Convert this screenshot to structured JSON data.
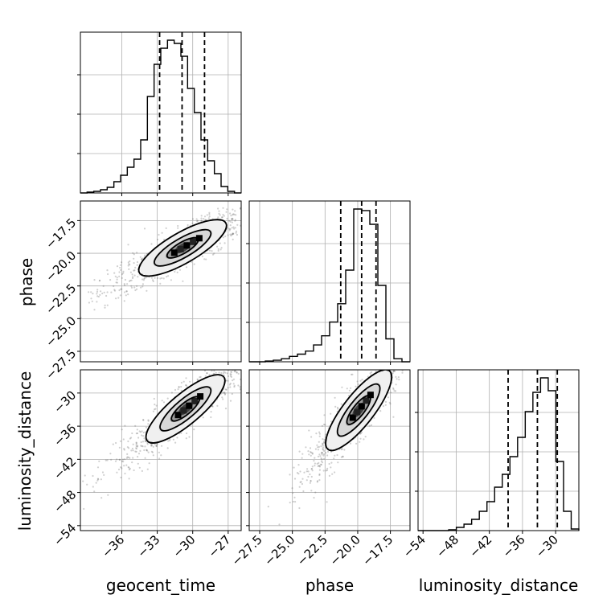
{
  "chart_data": {
    "type": "corner",
    "parameters": [
      "geocent_time",
      "phase",
      "luminosity_distance"
    ],
    "axis_labels": {
      "x": [
        "geocent_time",
        "phase",
        "luminosity_distance"
      ],
      "y": [
        "phase",
        "luminosity_distance"
      ]
    },
    "ranges": {
      "geocent_time": [
        -39.5,
        -25.9
      ],
      "phase": [
        -28.3,
        -16.0
      ],
      "luminosity_distance": [
        -54.9,
        -25.8
      ]
    },
    "ticks": {
      "geocent_time": [
        -36,
        -33,
        -30,
        -27
      ],
      "phase": [
        -27.5,
        -25.0,
        -22.5,
        -20.0,
        -17.5
      ],
      "luminosity_distance": [
        -54,
        -48,
        -42,
        -36,
        -30
      ]
    },
    "tick_labels": {
      "geocent_time": [
        "−36",
        "−33",
        "−30",
        "−27"
      ],
      "phase": [
        "−27.5",
        "−25.0",
        "−22.5",
        "−20.0",
        "−17.5"
      ],
      "luminosity_distance": [
        "−54",
        "−48",
        "−42",
        "−36",
        "−30"
      ]
    },
    "quantile_lines": {
      "geocent_time": [
        -32.8,
        -30.9,
        -29.0
      ],
      "phase": [
        -21.3,
        -19.7,
        -18.6
      ],
      "luminosity_distance": [
        -38.6,
        -33.3,
        -29.7
      ]
    },
    "histograms": {
      "geocent_time": {
        "bin_range": [
          -39.5,
          -25.9
        ],
        "counts": [
          0,
          0.5,
          1,
          2,
          3.5,
          7,
          11,
          16,
          21,
          33,
          60,
          80,
          90,
          95,
          93,
          85,
          65,
          50,
          33,
          20,
          12,
          4,
          1,
          0
        ]
      },
      "phase": {
        "bin_range": [
          -28.3,
          -16.0
        ],
        "counts": [
          0,
          0,
          0.5,
          1,
          2,
          3.5,
          5,
          7,
          11,
          17,
          26,
          38,
          60,
          100,
          99,
          90,
          50,
          15,
          2,
          0
        ]
      },
      "luminosity_distance": {
        "bin_range": [
          -54.9,
          -25.8
        ],
        "counts": [
          0,
          0,
          0,
          0,
          0.5,
          2,
          4,
          7,
          12,
          18,
          27,
          35,
          46,
          58,
          74,
          86,
          95,
          87,
          43,
          12,
          1
        ]
      }
    },
    "contours_2d": {
      "geocent_time__phase": {
        "center": [
          -30.5,
          -19.4
        ],
        "angle_deg": 30
      },
      "geocent_time__luminosity_distance": {
        "center": [
          -30.3,
          -32.3
        ],
        "angle_deg": 40
      },
      "phase__luminosity_distance": {
        "center": [
          -19.7,
          -32.4
        ],
        "angle_deg": 52
      }
    },
    "grid": true
  }
}
